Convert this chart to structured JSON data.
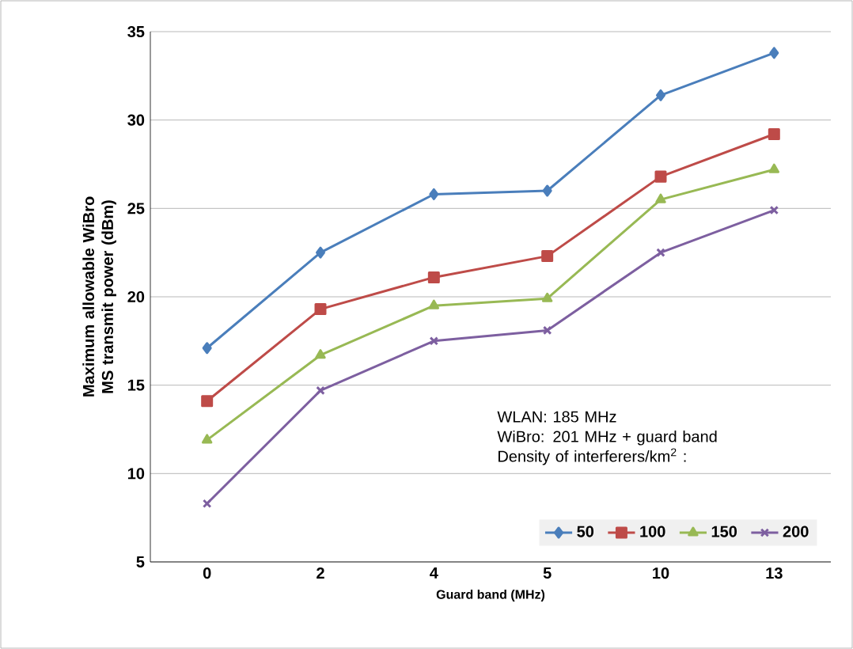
{
  "chart_data": {
    "type": "line",
    "xlabel": "Guard band (MHz)",
    "ylabel": "Maximum allowable WiBro MS transmit power (dBm)",
    "categories": [
      "0",
      "2",
      "4",
      "5",
      "10",
      "13"
    ],
    "series": [
      {
        "name": "50",
        "color": "#4a7ebb",
        "marker": "diamond",
        "values": [
          17.1,
          22.5,
          25.8,
          26.0,
          31.4,
          33.8
        ]
      },
      {
        "name": "100",
        "color": "#be4b48",
        "marker": "square",
        "values": [
          14.1,
          19.3,
          21.1,
          22.3,
          26.8,
          29.2
        ]
      },
      {
        "name": "150",
        "color": "#98b954",
        "marker": "triangle",
        "values": [
          11.9,
          16.7,
          19.5,
          19.9,
          25.5,
          27.2
        ]
      },
      {
        "name": "200",
        "color": "#7d5fa0",
        "marker": "cross",
        "values": [
          8.3,
          14.7,
          17.5,
          18.1,
          22.5,
          24.9
        ]
      }
    ],
    "ylim": [
      5,
      35
    ],
    "yticks": [
      5,
      10,
      15,
      20,
      25,
      30,
      35
    ],
    "grid": "y",
    "legend": "bottom right",
    "line_style": "solid",
    "annotations": [
      "WLAN: 185 MHz",
      "WiBro: 201 MHz + guard band",
      "Density of interferers/km$^{2}$ :"
    ]
  }
}
